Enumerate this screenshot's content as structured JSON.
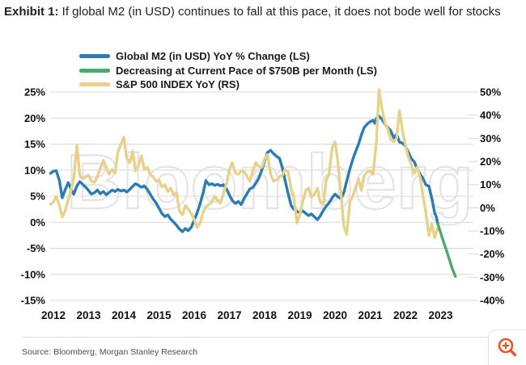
{
  "title": {
    "prefix": "Exhibit 1:",
    "text": " If global M2 (in USD) continues to fall at this pace, it does not bode well for stocks"
  },
  "legend": [
    {
      "label": "Global M2 (in USD) YoY % Change (LS)",
      "color": "#2b7bb4"
    },
    {
      "label": "Decreasing at Current Pace of $750B per Month (LS)",
      "color": "#4caa6e"
    },
    {
      "label": "S&P 500 INDEX YoY (RS)",
      "color": "#e7d28b"
    }
  ],
  "watermark": "Bloomberg",
  "source": "Source: Bloomberg, Morgan Stanley Research",
  "colors": {
    "m2_line": "#2b7bb4",
    "pace_line": "#4caa6e",
    "spx_line": "#e7d28b",
    "grid": "#d8d8d8",
    "axis_text": "#111111",
    "watermark_stroke": "#e4e4e4",
    "zoom_icon": "#e8562c"
  },
  "chart_data": {
    "type": "line",
    "title": "Global M2 YoY vs S&P 500 YoY",
    "x_axis": {
      "years": [
        "2012",
        "2013",
        "2014",
        "2015",
        "2016",
        "2017",
        "2018",
        "2019",
        "2020",
        "2021",
        "2022",
        "2023"
      ]
    },
    "left_axis": {
      "ticks": [
        "25%",
        "20%",
        "15%",
        "10%",
        "5%",
        "0%",
        "-5%",
        "-10%",
        "-15%"
      ],
      "values": [
        25,
        20,
        15,
        10,
        5,
        0,
        -5,
        -10,
        -15
      ],
      "range": [
        -15,
        25
      ]
    },
    "right_axis": {
      "ticks": [
        "50%",
        "40%",
        "30%",
        "20%",
        "10%",
        "0%",
        "-10%",
        "-20%",
        "-30%",
        "-40%"
      ],
      "values": [
        50,
        40,
        30,
        20,
        10,
        0,
        -10,
        -20,
        -30,
        -40
      ],
      "range": [
        -40,
        50
      ]
    },
    "grid": true,
    "legend_position": "top",
    "series": [
      {
        "name": "Global M2 (in USD) YoY % Change (LS)",
        "slug": "m2-yoy-line",
        "axis": "left",
        "color": "#2b7bb4",
        "points": [
          [
            2011.92,
            9.4
          ],
          [
            2012.0,
            9.8
          ],
          [
            2012.08,
            9.9
          ],
          [
            2012.17,
            8.0
          ],
          [
            2012.25,
            4.7
          ],
          [
            2012.33,
            6.2
          ],
          [
            2012.42,
            7.6
          ],
          [
            2012.5,
            6.4
          ],
          [
            2012.58,
            5.4
          ],
          [
            2012.67,
            7.0
          ],
          [
            2012.75,
            7.8
          ],
          [
            2012.83,
            7.3
          ],
          [
            2012.92,
            6.7
          ],
          [
            2013.0,
            6.1
          ],
          [
            2013.08,
            5.4
          ],
          [
            2013.17,
            5.7
          ],
          [
            2013.25,
            6.2
          ],
          [
            2013.33,
            5.5
          ],
          [
            2013.42,
            5.9
          ],
          [
            2013.5,
            5.3
          ],
          [
            2013.58,
            5.7
          ],
          [
            2013.67,
            6.2
          ],
          [
            2013.75,
            5.9
          ],
          [
            2013.83,
            6.3
          ],
          [
            2013.92,
            6.0
          ],
          [
            2014.0,
            6.2
          ],
          [
            2014.08,
            5.8
          ],
          [
            2014.17,
            6.3
          ],
          [
            2014.25,
            6.9
          ],
          [
            2014.33,
            7.4
          ],
          [
            2014.42,
            7.1
          ],
          [
            2014.5,
            6.7
          ],
          [
            2014.58,
            7.0
          ],
          [
            2014.67,
            6.3
          ],
          [
            2014.75,
            5.4
          ],
          [
            2014.83,
            4.5
          ],
          [
            2014.92,
            3.7
          ],
          [
            2015.0,
            2.7
          ],
          [
            2015.08,
            1.7
          ],
          [
            2015.17,
            1.1
          ],
          [
            2015.25,
            1.4
          ],
          [
            2015.33,
            0.6
          ],
          [
            2015.42,
            0.0
          ],
          [
            2015.5,
            -0.6
          ],
          [
            2015.58,
            -1.3
          ],
          [
            2015.67,
            -1.8
          ],
          [
            2015.75,
            -1.2
          ],
          [
            2015.83,
            -1.6
          ],
          [
            2015.92,
            -0.9
          ],
          [
            2016.0,
            0.4
          ],
          [
            2016.08,
            1.8
          ],
          [
            2016.17,
            3.6
          ],
          [
            2016.25,
            5.6
          ],
          [
            2016.33,
            8.0
          ],
          [
            2016.42,
            7.2
          ],
          [
            2016.5,
            7.4
          ],
          [
            2016.58,
            7.1
          ],
          [
            2016.67,
            7.3
          ],
          [
            2016.75,
            7.0
          ],
          [
            2016.83,
            7.2
          ],
          [
            2016.92,
            6.4
          ],
          [
            2017.0,
            5.2
          ],
          [
            2017.08,
            4.2
          ],
          [
            2017.17,
            3.6
          ],
          [
            2017.25,
            4.0
          ],
          [
            2017.33,
            3.4
          ],
          [
            2017.42,
            4.6
          ],
          [
            2017.5,
            5.5
          ],
          [
            2017.58,
            6.4
          ],
          [
            2017.67,
            6.7
          ],
          [
            2017.75,
            7.5
          ],
          [
            2017.83,
            8.4
          ],
          [
            2017.92,
            10.0
          ],
          [
            2018.0,
            11.8
          ],
          [
            2018.08,
            13.4
          ],
          [
            2018.17,
            13.8
          ],
          [
            2018.25,
            13.2
          ],
          [
            2018.33,
            12.7
          ],
          [
            2018.42,
            12.3
          ],
          [
            2018.5,
            10.5
          ],
          [
            2018.58,
            8.1
          ],
          [
            2018.67,
            5.5
          ],
          [
            2018.75,
            3.3
          ],
          [
            2018.83,
            2.5
          ],
          [
            2018.92,
            2.1
          ],
          [
            2019.0,
            1.8
          ],
          [
            2019.08,
            2.2
          ],
          [
            2019.17,
            1.7
          ],
          [
            2019.25,
            1.3
          ],
          [
            2019.33,
            1.6
          ],
          [
            2019.42,
            1.0
          ],
          [
            2019.5,
            0.5
          ],
          [
            2019.58,
            1.2
          ],
          [
            2019.67,
            2.3
          ],
          [
            2019.75,
            3.1
          ],
          [
            2019.83,
            3.7
          ],
          [
            2019.92,
            4.7
          ],
          [
            2020.0,
            5.4
          ],
          [
            2020.08,
            4.9
          ],
          [
            2020.17,
            4.5
          ],
          [
            2020.25,
            5.7
          ],
          [
            2020.33,
            7.9
          ],
          [
            2020.42,
            10.2
          ],
          [
            2020.5,
            12.0
          ],
          [
            2020.58,
            13.5
          ],
          [
            2020.67,
            15.0
          ],
          [
            2020.75,
            16.8
          ],
          [
            2020.83,
            18.2
          ],
          [
            2020.92,
            18.9
          ],
          [
            2021.0,
            19.3
          ],
          [
            2021.08,
            19.6
          ],
          [
            2021.13,
            19.0
          ],
          [
            2021.17,
            19.8
          ],
          [
            2021.23,
            20.5
          ],
          [
            2021.33,
            19.8
          ],
          [
            2021.42,
            18.8
          ],
          [
            2021.5,
            18.2
          ],
          [
            2021.58,
            17.6
          ],
          [
            2021.67,
            16.2
          ],
          [
            2021.75,
            16.9
          ],
          [
            2021.83,
            15.4
          ],
          [
            2021.92,
            15.2
          ],
          [
            2022.0,
            14.6
          ],
          [
            2022.08,
            13.5
          ],
          [
            2022.17,
            12.2
          ],
          [
            2022.25,
            11.6
          ],
          [
            2022.33,
            10.3
          ],
          [
            2022.42,
            9.2
          ],
          [
            2022.5,
            8.4
          ],
          [
            2022.58,
            7.2
          ],
          [
            2022.67,
            6.9
          ],
          [
            2022.75,
            4.6
          ],
          [
            2022.83,
            1.8
          ],
          [
            2022.88,
            1.0
          ],
          [
            2022.92,
            -0.3
          ]
        ]
      },
      {
        "name": "S&P 500 INDEX YoY (RS)",
        "slug": "spx-yoy-line",
        "axis": "right",
        "color": "#e7d28b",
        "points": [
          [
            2011.92,
            1.5
          ],
          [
            2012.0,
            2.5
          ],
          [
            2012.08,
            5.0
          ],
          [
            2012.17,
            1.0
          ],
          [
            2012.25,
            -4.0
          ],
          [
            2012.33,
            -1.5
          ],
          [
            2012.42,
            3.5
          ],
          [
            2012.5,
            7.5
          ],
          [
            2012.58,
            13.0
          ],
          [
            2012.67,
            27.0
          ],
          [
            2012.75,
            14.0
          ],
          [
            2012.83,
            12.5
          ],
          [
            2012.92,
            13.5
          ],
          [
            2013.0,
            14.0
          ],
          [
            2013.08,
            11.5
          ],
          [
            2013.17,
            11.0
          ],
          [
            2013.25,
            13.5
          ],
          [
            2013.33,
            17.0
          ],
          [
            2013.42,
            20.5
          ],
          [
            2013.5,
            17.5
          ],
          [
            2013.58,
            14.5
          ],
          [
            2013.67,
            16.5
          ],
          [
            2013.75,
            15.0
          ],
          [
            2013.83,
            24.0
          ],
          [
            2013.92,
            27.5
          ],
          [
            2014.0,
            30.5
          ],
          [
            2014.08,
            21.5
          ],
          [
            2014.17,
            19.5
          ],
          [
            2014.25,
            24.5
          ],
          [
            2014.33,
            16.0
          ],
          [
            2014.42,
            18.5
          ],
          [
            2014.5,
            22.5
          ],
          [
            2014.58,
            16.5
          ],
          [
            2014.67,
            17.5
          ],
          [
            2014.75,
            14.5
          ],
          [
            2014.83,
            13.5
          ],
          [
            2014.92,
            11.5
          ],
          [
            2015.0,
            12.0
          ],
          [
            2015.08,
            9.0
          ],
          [
            2015.17,
            10.0
          ],
          [
            2015.25,
            7.0
          ],
          [
            2015.33,
            8.5
          ],
          [
            2015.42,
            5.5
          ],
          [
            2015.5,
            6.5
          ],
          [
            2015.58,
            -1.5
          ],
          [
            2015.67,
            -3.0
          ],
          [
            2015.75,
            1.0
          ],
          [
            2015.83,
            -0.5
          ],
          [
            2015.92,
            -2.5
          ],
          [
            2016.0,
            -5.0
          ],
          [
            2016.08,
            -8.5
          ],
          [
            2016.17,
            -6.5
          ],
          [
            2016.25,
            -2.0
          ],
          [
            2016.33,
            0.5
          ],
          [
            2016.42,
            1.5
          ],
          [
            2016.5,
            2.5
          ],
          [
            2016.58,
            5.0
          ],
          [
            2016.67,
            3.0
          ],
          [
            2016.75,
            2.0
          ],
          [
            2016.83,
            6.0
          ],
          [
            2016.92,
            10.5
          ],
          [
            2017.0,
            16.5
          ],
          [
            2017.08,
            19.5
          ],
          [
            2017.17,
            15.0
          ],
          [
            2017.25,
            14.5
          ],
          [
            2017.33,
            16.0
          ],
          [
            2017.42,
            15.5
          ],
          [
            2017.5,
            13.5
          ],
          [
            2017.58,
            11.5
          ],
          [
            2017.67,
            16.0
          ],
          [
            2017.75,
            19.5
          ],
          [
            2017.83,
            18.0
          ],
          [
            2017.92,
            17.5
          ],
          [
            2018.0,
            21.0
          ],
          [
            2018.08,
            23.0
          ],
          [
            2018.17,
            14.5
          ],
          [
            2018.25,
            11.5
          ],
          [
            2018.33,
            12.0
          ],
          [
            2018.42,
            13.5
          ],
          [
            2018.5,
            14.0
          ],
          [
            2018.58,
            16.5
          ],
          [
            2018.67,
            15.5
          ],
          [
            2018.75,
            8.5
          ],
          [
            2018.83,
            4.5
          ],
          [
            2018.92,
            -6.5
          ],
          [
            2019.0,
            -3.0
          ],
          [
            2019.08,
            2.5
          ],
          [
            2019.17,
            7.5
          ],
          [
            2019.25,
            8.5
          ],
          [
            2019.33,
            4.5
          ],
          [
            2019.42,
            6.0
          ],
          [
            2019.5,
            8.5
          ],
          [
            2019.58,
            2.5
          ],
          [
            2019.67,
            1.5
          ],
          [
            2019.75,
            12.0
          ],
          [
            2019.83,
            14.5
          ],
          [
            2019.92,
            26.0
          ],
          [
            2020.0,
            28.5
          ],
          [
            2020.08,
            20.0
          ],
          [
            2020.17,
            6.0
          ],
          [
            2020.25,
            -8.0
          ],
          [
            2020.33,
            -11.5
          ],
          [
            2020.42,
            2.5
          ],
          [
            2020.5,
            5.0
          ],
          [
            2020.58,
            8.5
          ],
          [
            2020.67,
            12.5
          ],
          [
            2020.75,
            7.5
          ],
          [
            2020.83,
            14.0
          ],
          [
            2020.92,
            15.5
          ],
          [
            2021.0,
            16.0
          ],
          [
            2021.08,
            14.5
          ],
          [
            2021.17,
            27.5
          ],
          [
            2021.25,
            51.0
          ],
          [
            2021.33,
            43.0
          ],
          [
            2021.42,
            36.5
          ],
          [
            2021.5,
            34.0
          ],
          [
            2021.58,
            29.5
          ],
          [
            2021.67,
            28.5
          ],
          [
            2021.75,
            30.0
          ],
          [
            2021.83,
            42.0
          ],
          [
            2021.92,
            33.0
          ],
          [
            2022.0,
            27.0
          ],
          [
            2022.08,
            22.0
          ],
          [
            2022.17,
            18.5
          ],
          [
            2022.25,
            15.0
          ],
          [
            2022.33,
            17.5
          ],
          [
            2022.42,
            13.0
          ],
          [
            2022.5,
            5.0
          ],
          [
            2022.58,
            -2.0
          ],
          [
            2022.67,
            -12.0
          ],
          [
            2022.75,
            -7.0
          ],
          [
            2022.83,
            -13.0
          ],
          [
            2022.92,
            -8.5
          ],
          [
            2022.96,
            -9.5
          ]
        ]
      },
      {
        "name": "Decreasing at Current Pace of $750B per Month (LS)",
        "slug": "pace-projection-line",
        "axis": "left",
        "color": "#4caa6e",
        "points": [
          [
            2022.92,
            -0.3
          ],
          [
            2023.0,
            -2.0
          ],
          [
            2023.08,
            -3.7
          ],
          [
            2023.17,
            -5.5
          ],
          [
            2023.25,
            -7.2
          ],
          [
            2023.33,
            -8.9
          ],
          [
            2023.42,
            -10.4
          ]
        ]
      }
    ]
  },
  "zoom_button": {
    "icon": "magnifier-plus-icon"
  }
}
